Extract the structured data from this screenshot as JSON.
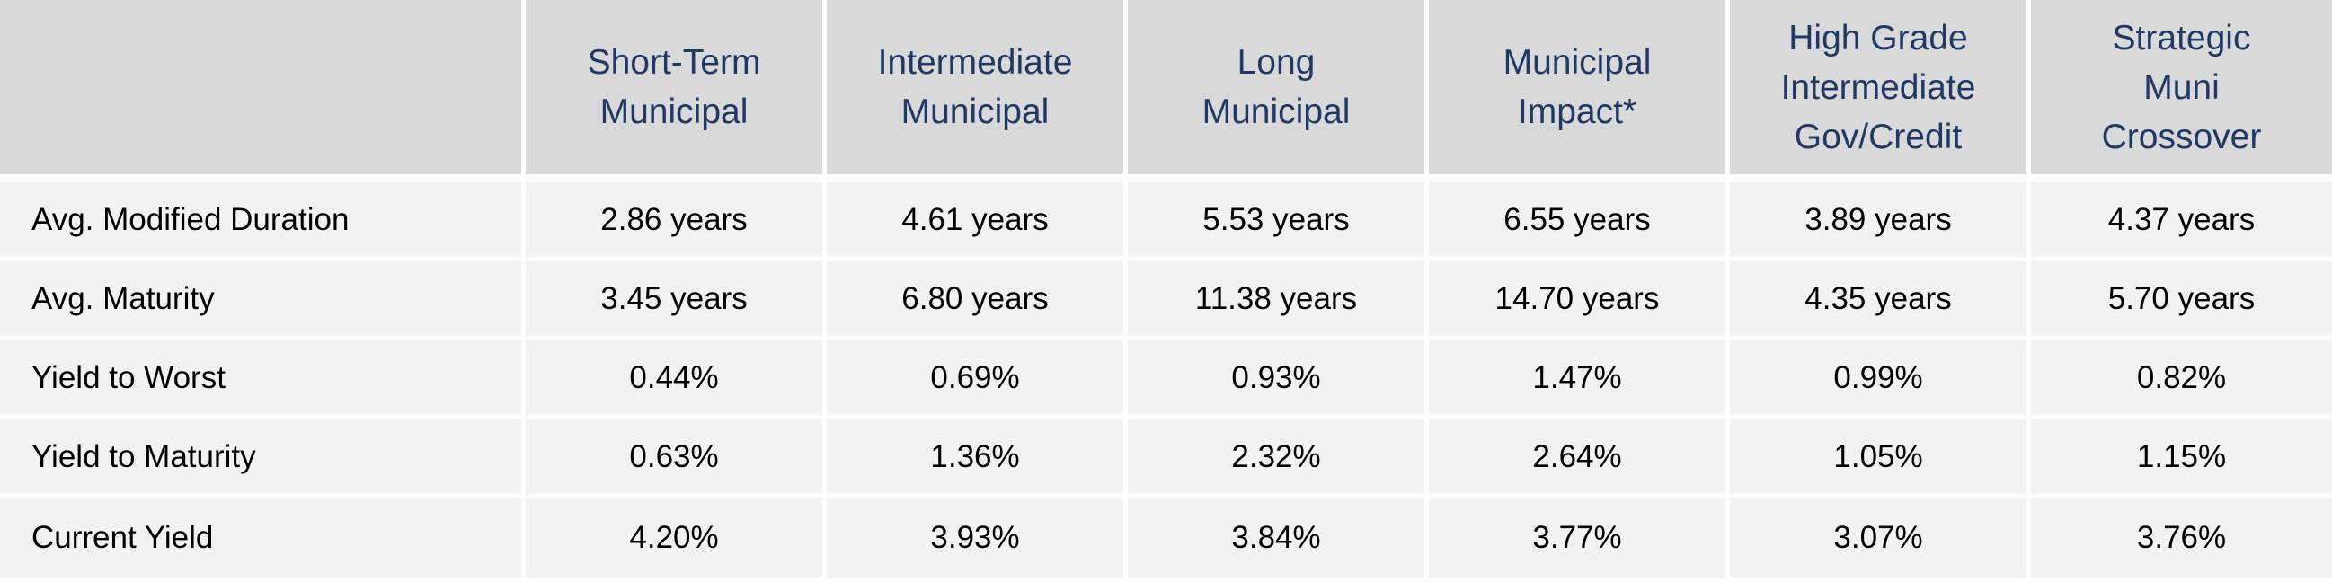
{
  "table": {
    "corner": "",
    "columns": [
      "Short-Term\nMunicipal",
      "Intermediate\nMunicipal",
      "Long\nMunicipal",
      "Municipal\nImpact*",
      "High Grade\nIntermediate\nGov/Credit",
      "Strategic\nMuni\nCrossover"
    ],
    "rows": [
      {
        "label": "Avg. Modified Duration",
        "values": [
          "2.86 years",
          "4.61 years",
          "5.53 years",
          "6.55 years",
          "3.89 years",
          "4.37 years"
        ]
      },
      {
        "label": "Avg. Maturity",
        "values": [
          "3.45 years",
          "6.80 years",
          "11.38 years",
          "14.70 years",
          "4.35 years",
          "5.70 years"
        ]
      },
      {
        "label": "Yield to Worst",
        "values": [
          "0.44%",
          "0.69%",
          "0.93%",
          "1.47%",
          "0.99%",
          "0.82%"
        ]
      },
      {
        "label": "Yield to Maturity",
        "values": [
          "0.63%",
          "1.36%",
          "2.32%",
          "2.64%",
          "1.05%",
          "1.15%"
        ]
      },
      {
        "label": "Current Yield",
        "values": [
          "4.20%",
          "3.93%",
          "3.84%",
          "3.77%",
          "3.07%",
          "3.76%"
        ]
      }
    ]
  },
  "colors": {
    "header_bg": "#d9d9d9",
    "header_text": "#1f3864",
    "row_bg": "#f2f2f2",
    "divider": "#ffffff"
  }
}
